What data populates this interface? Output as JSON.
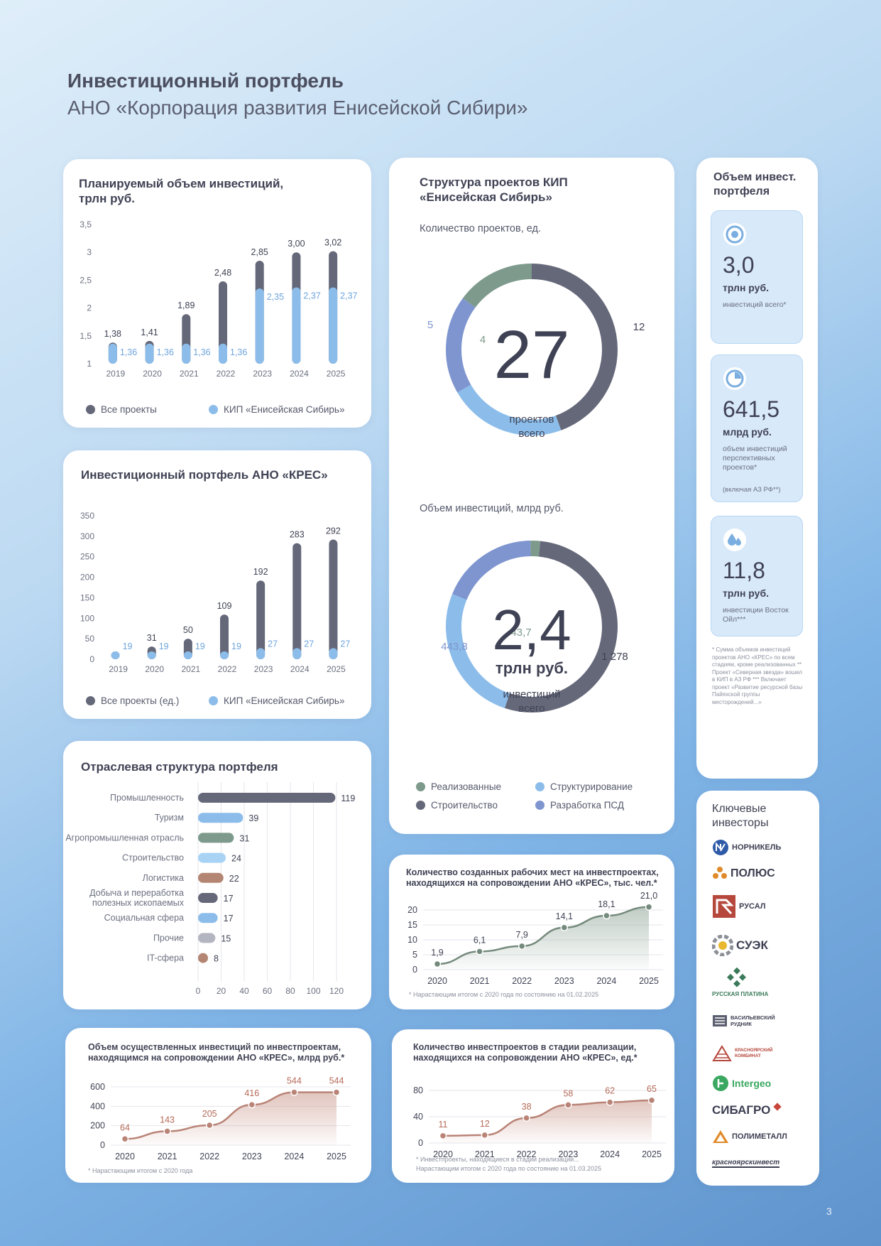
{
  "page": {
    "title": "Инвестиционный портфель",
    "subtitle": "АНО «Корпорация развития Енисейской Сибири»",
    "page_number": "3"
  },
  "colors": {
    "dark": "#656879",
    "light": "#8cbdea",
    "green": "#7d9a8c",
    "mid_blue": "#7e95cf",
    "brown": "#b48572",
    "gray": "#b3b6c1",
    "area_green": "#748a7c",
    "area_red": "#b98376"
  },
  "legend": {
    "all_projects": "Все проекты",
    "kip": "КИП «Енисейская Сибирь»",
    "all_projects_units": "Все проекты (ед.)",
    "realized": "Реализованные",
    "structuring": "Структурирование",
    "construction": "Строительство",
    "psd": "Разработка ПСД"
  },
  "sidebar": {
    "title": "Объем инвест. портфеля",
    "stats": [
      {
        "icon": "target-icon",
        "value": "3,0",
        "unit": "трлн руб.",
        "desc": "инвестиций всего*"
      },
      {
        "icon": "pie-icon",
        "value": "641,5",
        "unit": "млрд руб.",
        "desc": "объем инвестиций перспективных проектов*",
        "desc2": "(включая АЗ РФ**)"
      },
      {
        "icon": "drop-icon",
        "value": "11,8",
        "unit": "трлн руб.",
        "desc": "инвестиции Восток Ойл***"
      }
    ],
    "footnote": "* Сумма объемов инвестиций проектов АНО «КРЕС» по всем стадиям, кроме реализованных ** Проект «Северная звезда» вошел в КИП в АЗ РФ *** Включает проект «Развитие ресурсной базы Пайяхской группы месторождений...»",
    "investors_title": "Ключевые инвесторы",
    "investors": [
      "НОРНИКЕЛЬ",
      "ПОЛЮС",
      "РУСАЛ",
      "СУЭК",
      "РУССКАЯ ПЛАТИНА",
      "ВАСИЛЬЕВСКИЙ РУДНИК",
      "КРАСНОЯРСКИЙ КОМБИНАТ",
      "Intergeo",
      "СИБАГРО",
      "ПОЛИМЕТАЛЛ",
      "красноярскинвест"
    ]
  },
  "footnotes": {
    "jobs": "* Нарастающим итогом с 2020 года по состоянию на 01.02.2025",
    "invest": "* Нарастающим итогом с 2020 года",
    "stage": "* Инвестпроекты, находящиеся в стадии реализации...",
    "stage2": "Нарастающим итогом с 2020 года по состоянию на 01.03.2025"
  },
  "chart_data": [
    {
      "id": "planned",
      "type": "bar",
      "title": "Планируемый объем инвестиций, трлн руб.",
      "categories": [
        "2019",
        "2020",
        "2021",
        "2022",
        "2023",
        "2024",
        "2025"
      ],
      "series": [
        {
          "name": "Все проекты",
          "values": [
            1.38,
            1.41,
            1.89,
            2.48,
            2.85,
            3.0,
            3.02
          ],
          "labels": [
            "1,38",
            "1,41",
            "1,89",
            "2,48",
            "2,85",
            "3,00",
            "3,02"
          ]
        },
        {
          "name": "КИП «Енисейская Сибирь»",
          "values": [
            1.36,
            1.36,
            1.36,
            1.36,
            2.35,
            2.37,
            2.37
          ],
          "labels": [
            "1,36",
            "1,36",
            "1,36",
            "1,36",
            "2,35",
            "2,37",
            "2,37"
          ]
        }
      ],
      "yticks": [
        "1",
        "1,5",
        "2",
        "2,5",
        "3",
        "3,5"
      ],
      "ylim": [
        1,
        3.5
      ]
    },
    {
      "id": "portfolio",
      "type": "bar",
      "title": "Инвестиционный портфель АНО «КРЕС»",
      "categories": [
        "2019",
        "2020",
        "2021",
        "2022",
        "2023",
        "2024",
        "2025"
      ],
      "series": [
        {
          "name": "Все проекты (ед.)",
          "values": [
            19,
            31,
            50,
            109,
            192,
            283,
            292
          ],
          "labels": [
            "",
            "31",
            "50",
            "109",
            "192",
            "283",
            "292"
          ]
        },
        {
          "name": "КИП «Енисейская Сибирь»",
          "values": [
            19,
            19,
            19,
            19,
            27,
            27,
            27
          ],
          "labels": [
            "19",
            "19",
            "19",
            "19",
            "27",
            "27",
            "27"
          ]
        }
      ],
      "yticks": [
        "0",
        "50",
        "100",
        "150",
        "200",
        "250",
        "300",
        "350"
      ],
      "ylim": [
        0,
        350
      ]
    },
    {
      "id": "sector",
      "type": "bar",
      "orientation": "horizontal",
      "title": "Отраслевая структура портфеля",
      "categories": [
        "Промышленность",
        "Туризм",
        "Агропромышленная отрасль",
        "Строительство",
        "Логистика",
        "Добыча и переработка полезных ископаемых",
        "Социальная сфера",
        "Прочие",
        "IT-сфера"
      ],
      "values": [
        119,
        39,
        31,
        24,
        22,
        17,
        17,
        15,
        8
      ],
      "xticks": [
        "0",
        "20",
        "40",
        "60",
        "80",
        "100",
        "120"
      ],
      "xlim": [
        0,
        120
      ]
    },
    {
      "id": "structure_count",
      "type": "pie",
      "title": "Структура проектов КИП «Енисейская Сибирь»",
      "subtitle": "Количество проектов, ед.",
      "center_value": "27",
      "center_label": "проектов всего",
      "slices": [
        {
          "name": "Строительство",
          "value": 12,
          "label": "12"
        },
        {
          "name": "Структурирование",
          "value": 6,
          "label": "6"
        },
        {
          "name": "Разработка ПСД",
          "value": 5,
          "label": "5"
        },
        {
          "name": "Реализованные",
          "value": 4,
          "label": "4"
        }
      ]
    },
    {
      "id": "structure_volume",
      "type": "pie",
      "subtitle": "Объем инвестиций, млрд руб.",
      "center_value": "2,4",
      "center_unit": "трлн руб.",
      "center_label": "инвестиций всего",
      "slices": [
        {
          "name": "Строительство",
          "value": 1278,
          "label": "1 278"
        },
        {
          "name": "Структурирование",
          "value": 623.4,
          "label": "623,4"
        },
        {
          "name": "Разработка ПСД",
          "value": 443.8,
          "label": "443,8"
        },
        {
          "name": "Реализованные",
          "value": 43.7,
          "label": "43,7"
        }
      ]
    },
    {
      "id": "jobs",
      "type": "area",
      "title": "Количество созданных рабочих мест на инвестпроектах, находящихся на сопровождении АНО «КРЕС», тыс. чел.*",
      "x": [
        "2020",
        "2021",
        "2022",
        "2023",
        "2024",
        "2025"
      ],
      "values": [
        1.9,
        6.1,
        7.9,
        14.1,
        18.1,
        21.0
      ],
      "labels": [
        "1,9",
        "6,1",
        "7,9",
        "14,1",
        "18,1",
        "21,0"
      ],
      "yticks": [
        "0",
        "5",
        "10",
        "15",
        "20"
      ],
      "ylim": [
        0,
        20
      ]
    },
    {
      "id": "investments",
      "type": "area",
      "title": "Объем осуществленных инвестиций по инвестпроектам, находящимся на сопровождении АНО «КРЕС», млрд руб.*",
      "x": [
        "2020",
        "2021",
        "2022",
        "2023",
        "2024",
        "2025"
      ],
      "values": [
        64,
        143,
        205,
        416,
        544,
        544
      ],
      "labels": [
        "64",
        "143",
        "205",
        "416",
        "544",
        "544"
      ],
      "yticks": [
        "0",
        "200",
        "400",
        "600"
      ],
      "ylim": [
        0,
        600
      ]
    },
    {
      "id": "stage",
      "type": "area",
      "title": "Количество инвестпроектов в стадии реализации, находящихся на сопровождении АНО «КРЕС», ед.*",
      "x": [
        "2020",
        "2021",
        "2022",
        "2023",
        "2024",
        "2025"
      ],
      "values": [
        11,
        12,
        38,
        58,
        62,
        65
      ],
      "labels": [
        "11",
        "12",
        "38",
        "58",
        "62",
        "65"
      ],
      "yticks": [
        "0",
        "40",
        "80"
      ],
      "ylim": [
        0,
        80
      ]
    }
  ]
}
